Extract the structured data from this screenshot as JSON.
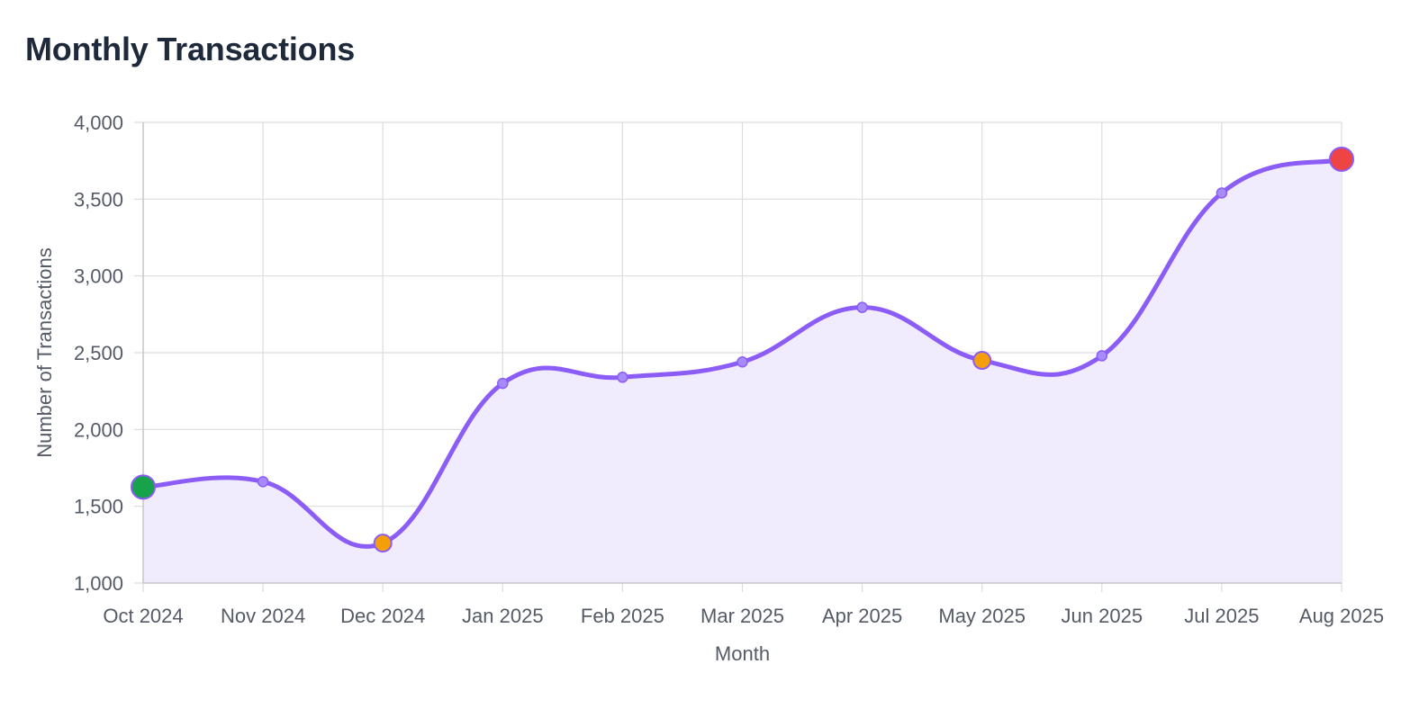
{
  "title": "Monthly Transactions",
  "chart_data": {
    "type": "area",
    "title": "Monthly Transactions",
    "xlabel": "Month",
    "ylabel": "Number of Transactions",
    "categories": [
      "Oct 2024",
      "Nov 2024",
      "Dec 2024",
      "Jan 2025",
      "Feb 2025",
      "Mar 2025",
      "Apr 2025",
      "May 2025",
      "Jun 2025",
      "Jul 2025",
      "Aug 2025"
    ],
    "values": [
      1625,
      1660,
      1260,
      2300,
      2340,
      2440,
      2795,
      2450,
      2480,
      3540,
      3760
    ],
    "ylim": [
      1000,
      4000
    ],
    "yticks": [
      1000,
      1500,
      2000,
      2500,
      3000,
      3500,
      4000
    ],
    "ytick_labels": [
      "1,000",
      "1,500",
      "2,000",
      "2,500",
      "3,000",
      "3,500",
      "4,000"
    ],
    "grid": true,
    "colors": {
      "line": "#8b5cf6",
      "fill": "#f1ecfd",
      "point": "#a78bfa",
      "low": "#16a34a",
      "dip": "#f59e0b",
      "high": "#ef4444",
      "grid": "#dcdce0"
    },
    "highlights": [
      {
        "index": 0,
        "kind": "low"
      },
      {
        "index": 2,
        "kind": "dip"
      },
      {
        "index": 7,
        "kind": "dip"
      },
      {
        "index": 10,
        "kind": "high"
      }
    ]
  }
}
